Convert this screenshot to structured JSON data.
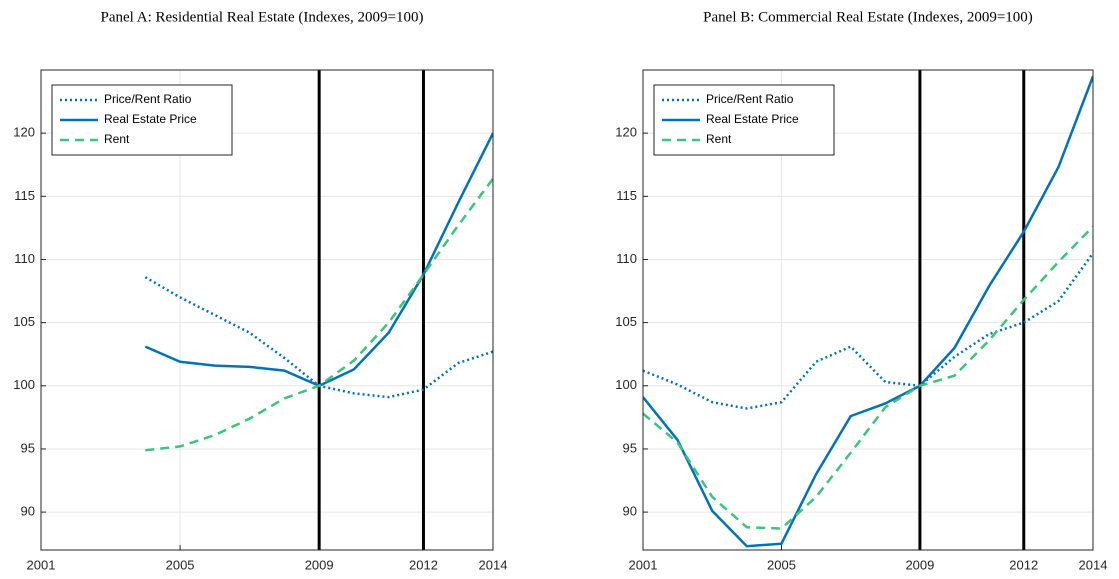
{
  "chart_data": [
    {
      "type": "line",
      "title": "Panel A: Residential Real Estate (Indexes, 2009=100)",
      "x": [
        2004,
        2005,
        2006,
        2007,
        2008,
        2009,
        2010,
        2011,
        2012,
        2013,
        2014
      ],
      "series": [
        {
          "name": "Price/Rent Ratio",
          "color": "#0072bd",
          "dash": "dotted",
          "values": [
            108.6,
            107,
            105.6,
            104.2,
            102.2,
            100,
            99.4,
            99.1,
            99.7,
            101.8,
            102.7
          ]
        },
        {
          "name": "Real Estate Price",
          "color": "#0072bd",
          "dash": "solid",
          "values": [
            103.1,
            101.9,
            101.6,
            101.5,
            101.2,
            100,
            101.3,
            104.2,
            108.8,
            114.5,
            120
          ]
        },
        {
          "name": "Rent",
          "color": "#3cc47a",
          "dash": "dashed",
          "values": [
            94.9,
            95.2,
            96.1,
            97.4,
            99,
            100,
            102,
            105,
            108.8,
            112.7,
            116.4
          ]
        }
      ],
      "vlines": [
        2009,
        2012
      ],
      "xlim": [
        2001,
        2014
      ],
      "xticks": [
        2001,
        2005,
        2009,
        2012,
        2014
      ],
      "ylim": [
        87,
        125
      ],
      "yticks": [
        90,
        95,
        100,
        105,
        110,
        115,
        120
      ],
      "grid": true,
      "legend": "upper-left"
    },
    {
      "type": "line",
      "title": "Panel B: Commercial Real Estate (Indexes, 2009=100)",
      "x": [
        2001,
        2002,
        2003,
        2004,
        2005,
        2006,
        2007,
        2008,
        2009,
        2010,
        2011,
        2012,
        2013,
        2014
      ],
      "series": [
        {
          "name": "Price/Rent Ratio",
          "color": "#0072bd",
          "dash": "dotted",
          "values": [
            101.2,
            100.1,
            98.7,
            98.2,
            98.7,
            101.9,
            103.1,
            100.3,
            100,
            102.3,
            104.1,
            105,
            106.7,
            110.5
          ]
        },
        {
          "name": "Real Estate Price",
          "color": "#0072bd",
          "dash": "solid",
          "values": [
            99.1,
            95.7,
            90.1,
            87.3,
            87.5,
            93,
            97.6,
            98.6,
            100,
            103,
            107.9,
            112.2,
            117.3,
            124.5
          ]
        },
        {
          "name": "Rent",
          "color": "#3cc47a",
          "dash": "dashed",
          "values": [
            97.8,
            95.5,
            91.2,
            88.8,
            88.7,
            91.2,
            94.7,
            98.3,
            100,
            100.8,
            103.6,
            106.8,
            109.8,
            112.6
          ]
        }
      ],
      "vlines": [
        2009,
        2012
      ],
      "xlim": [
        2001,
        2014
      ],
      "xticks": [
        2001,
        2005,
        2009,
        2012,
        2014
      ],
      "ylim": [
        87,
        125
      ],
      "yticks": [
        90,
        95,
        100,
        105,
        110,
        115,
        120
      ],
      "grid": true,
      "legend": "upper-left"
    }
  ]
}
